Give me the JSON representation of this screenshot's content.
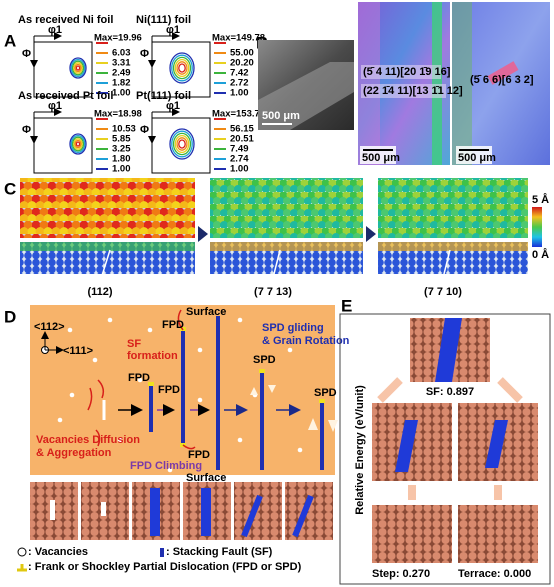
{
  "panel_a": {
    "label": "A",
    "plots": [
      {
        "title": "As received Ni foil",
        "x_axis": "φ1",
        "y_axis": "Φ",
        "legend": [
          "Max=19.96",
          "6.03",
          "3.31",
          "2.49",
          "1.82",
          "1.00"
        ]
      },
      {
        "title": "Ni(111) foil",
        "x_axis": "φ1",
        "y_axis": "Φ",
        "legend": [
          "Max=149.78",
          "55.00",
          "20.20",
          "7.42",
          "2.72",
          "1.00"
        ]
      },
      {
        "title": "As received Pt foil",
        "x_axis": "φ1",
        "y_axis": "Φ",
        "legend": [
          "Max=18.98",
          "10.53",
          "5.85",
          "3.25",
          "1.80",
          "1.00"
        ]
      },
      {
        "title": "Pt(111) foil",
        "x_axis": "φ1",
        "y_axis": "Φ",
        "legend": [
          "Max=153.70",
          "56.15",
          "20.51",
          "7.49",
          "2.74",
          "1.00"
        ]
      }
    ]
  },
  "panel_b": {
    "label": "B",
    "scale_bars": [
      "500 μm",
      "500 μm",
      "500 μm"
    ],
    "orientations": [
      "(5̄ 4 11)[20 1̄9 16]",
      "(22 1̄4 11)[13 1̄1 12]",
      "(5̄ 6 6)[6 3 2]"
    ]
  },
  "panel_c": {
    "label": "C",
    "surfaces": [
      "(112)",
      "(7 7 13)",
      "(7 7 10)"
    ],
    "colorbar": [
      "5 Å",
      "0 Å"
    ]
  },
  "panel_d": {
    "label": "D",
    "axes": [
      "<112>",
      "<111>"
    ],
    "surface_top": "Surface",
    "sf_formation": [
      "SF",
      "formation"
    ],
    "fpd": [
      "FPD",
      "FPD",
      "FPD",
      "FPD"
    ],
    "spd": [
      "SPD",
      "SPD"
    ],
    "spd_gliding": [
      "SPD gliding",
      "& Grain Rotation"
    ],
    "vacancies": [
      "Vacancies Diffusion",
      "& Aggregation"
    ],
    "fpd_climbing": "FPD Climbing",
    "surface_bottom": "Surface",
    "legend": [
      ": Vacancies",
      ": Stacking Fault (SF)",
      ": Frank or Shockley Partial Dislocation (FPD or SPD)"
    ]
  },
  "panel_e": {
    "label": "E",
    "y_axis": "Relative Energy (eV/unit)",
    "energies": [
      "SF: 0.897",
      "Step: 0.270",
      "Terrace: 0.000"
    ]
  }
}
